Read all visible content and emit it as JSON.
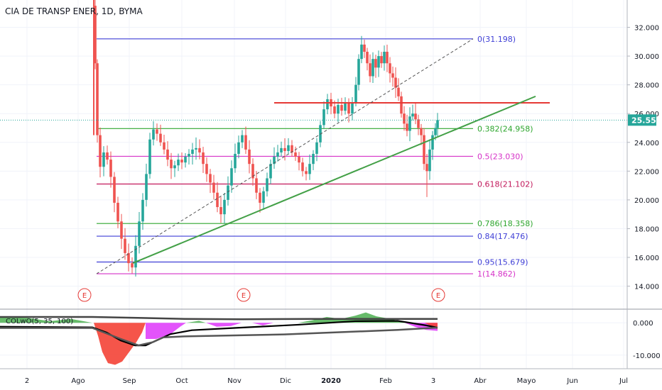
{
  "chart_data": {
    "type": "candlestick",
    "title": "CIA DE TRANSP ENER, 1D, BYMA",
    "x_labels": [
      "2",
      "Ago",
      "Sep",
      "Oct",
      "Nov",
      "Dic",
      "2020",
      "Feb",
      "3",
      "Abr",
      "Mayo",
      "Jun",
      "Jul"
    ],
    "y_ticks": [
      "32.000",
      "30.000",
      "28.000",
      "26.000",
      "24.000",
      "22.000",
      "20.000",
      "18.000",
      "16.000",
      "14.000"
    ],
    "y_tick_values": [
      32,
      30,
      28,
      26,
      24,
      22,
      20,
      18,
      16,
      14
    ],
    "ylim": [
      12.4,
      33.9
    ],
    "last_price": {
      "label": "25.550",
      "value": 25.55,
      "color": "#26a69a"
    },
    "fib_levels": [
      {
        "label": "0(31.198)",
        "value": 31.198,
        "color": "#3f3fd6"
      },
      {
        "label": "0.382(24.958)",
        "value": 24.958,
        "color": "#2ea62e"
      },
      {
        "label": "0.5(23.030)",
        "value": 23.03,
        "color": "#d632c8"
      },
      {
        "label": "0.618(21.102)",
        "value": 21.102,
        "color": "#c2185b"
      },
      {
        "label": "0.786(18.358)",
        "value": 18.358,
        "color": "#2ea62e"
      },
      {
        "label": "0.84(17.476)",
        "value": 17.476,
        "color": "#3f3fd6"
      },
      {
        "label": "0.95(15.679)",
        "value": 15.679,
        "color": "#3f3fd6"
      },
      {
        "label": "1(14.862)",
        "value": 14.862,
        "color": "#d632c8"
      }
    ],
    "resistance_line": {
      "value": 26.75,
      "color": "#e53935"
    },
    "events": [
      "E",
      "E",
      "E"
    ],
    "indicator": {
      "label": "COLwO(5, 35, 100)",
      "y_ticks": [
        "0.000",
        "-10.000"
      ],
      "y_tick_values": [
        0,
        -10
      ]
    },
    "colors": {
      "up": "#26a69a",
      "down": "#ef5350",
      "trendline": "#43a047",
      "grid": "#f0f3fa",
      "axis_text": "#131722"
    }
  }
}
